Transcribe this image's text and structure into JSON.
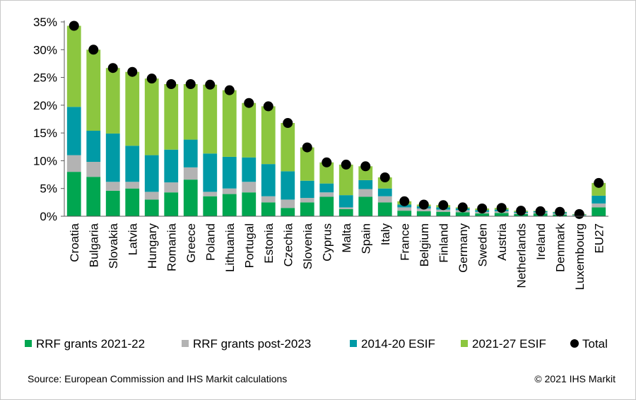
{
  "chart_data": {
    "type": "bar",
    "stacked": true,
    "categories": [
      "Croatia",
      "Bulgaria",
      "Slovakia",
      "Latvia",
      "Hungary",
      "Romania",
      "Greece",
      "Poland",
      "Lithuania",
      "Portugal",
      "Estonia",
      "Czechia",
      "Slovenia",
      "Cyprus",
      "Malta",
      "Spain",
      "Italy",
      "France",
      "Belgium",
      "Finland",
      "Germany",
      "Sweden",
      "Austria",
      "Netherlands",
      "Ireland",
      "Denmark",
      "Luxembourg",
      "EU27"
    ],
    "series": [
      {
        "name": "RRF grants 2021-22",
        "color": "#00a650",
        "values": [
          8.0,
          7.1,
          4.6,
          5.0,
          3.0,
          4.3,
          6.6,
          3.6,
          4.0,
          4.3,
          2.5,
          1.5,
          2.5,
          3.5,
          1.3,
          3.5,
          2.5,
          1.0,
          0.9,
          0.8,
          0.7,
          0.5,
          0.6,
          0.4,
          0.5,
          0.3,
          0.1,
          1.6
        ]
      },
      {
        "name": "RRF grants post-2023",
        "color": "#b3b3b3",
        "values": [
          3.0,
          2.7,
          1.6,
          1.2,
          1.4,
          1.8,
          2.2,
          0.8,
          1.0,
          1.9,
          1.1,
          1.5,
          0.8,
          0.8,
          0.3,
          1.4,
          1.1,
          0.6,
          0.5,
          0.4,
          0.4,
          0.3,
          0.3,
          0.2,
          0.2,
          0.2,
          0.1,
          0.7
        ]
      },
      {
        "name": "2014-20 ESIF",
        "color": "#009aa6",
        "values": [
          8.7,
          5.6,
          8.7,
          6.5,
          6.6,
          5.9,
          5.0,
          6.9,
          5.7,
          4.4,
          5.8,
          5.1,
          3.1,
          1.6,
          2.2,
          1.6,
          1.4,
          0.5,
          0.4,
          0.4,
          0.3,
          0.3,
          0.3,
          0.2,
          0.2,
          0.2,
          0.1,
          1.4
        ]
      },
      {
        "name": "2021-27 ESIF",
        "color": "#8cc63f",
        "values": [
          14.6,
          14.6,
          11.8,
          13.3,
          13.8,
          11.8,
          10.0,
          12.4,
          12.0,
          9.8,
          10.4,
          8.7,
          6.0,
          3.8,
          5.5,
          2.5,
          2.0,
          0.6,
          0.3,
          0.4,
          0.2,
          0.3,
          0.3,
          0.2,
          0.1,
          0.1,
          0.1,
          2.3
        ]
      }
    ],
    "total": {
      "name": "Total",
      "color": "#000000",
      "values": [
        34.3,
        30.0,
        26.7,
        26.0,
        24.8,
        23.8,
        23.8,
        23.7,
        22.7,
        20.4,
        19.8,
        16.8,
        12.4,
        9.7,
        9.3,
        9.0,
        7.0,
        2.7,
        2.1,
        2.0,
        1.6,
        1.4,
        1.5,
        1.0,
        0.9,
        0.8,
        0.4,
        6.0
      ]
    },
    "y_ticks": [
      "0%",
      "5%",
      "10%",
      "15%",
      "20%",
      "25%",
      "30%",
      "35%"
    ],
    "ylim": [
      0,
      35
    ],
    "xlabel": "",
    "ylabel": "",
    "legend_position": "bottom",
    "grid": false
  },
  "footer": {
    "source": "Source: European Commission and IHS Markit calculations",
    "copyright": "© 2021 IHS Markit"
  }
}
